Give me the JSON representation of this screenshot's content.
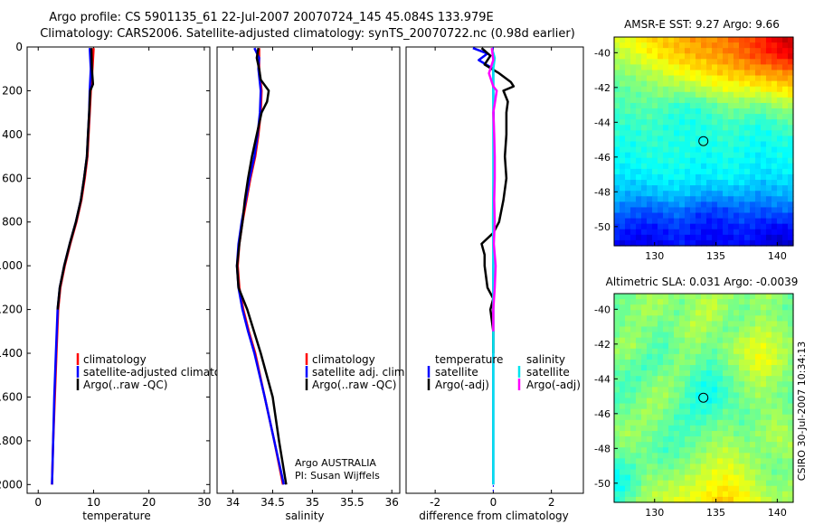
{
  "header": {
    "line1": "Argo profile: CS 5901135_61 22-Jul-2007 20070724_145 45.084S 133.979E",
    "line2": "Climatology: CARS2006. Satellite-adjusted climatology: synTS_20070722.nc (0.98d earlier)"
  },
  "side_label": "CSIRO 30-Jul-2007 10:34:13",
  "colors": {
    "climatology": "#ff0000",
    "satellite": "#0000ff",
    "argo": "#000000",
    "salinity_sat": "#00e5ee",
    "salinity_argo": "#ff00ff"
  },
  "chart_data": [
    {
      "id": "temperature",
      "type": "line",
      "title": "",
      "xlabel": "temperature",
      "ylabel": "",
      "xlim": [
        -2,
        31
      ],
      "ylim": [
        2040,
        0
      ],
      "xticks": [
        0,
        10,
        20,
        30
      ],
      "yticks": [
        0,
        200,
        400,
        600,
        800,
        1000,
        1200,
        1400,
        1600,
        1800,
        2000
      ],
      "grid": false,
      "legend": {
        "position": "lower-right",
        "entries": [
          "climatology",
          "satellite-adjusted climatology",
          "Argo(..raw -QC)"
        ]
      },
      "series": [
        {
          "name": "climatology",
          "color": "#ff0000",
          "depth": [
            5,
            100,
            200,
            300,
            400,
            500,
            600,
            700,
            800,
            900,
            1000,
            1100,
            1200,
            1400,
            1600,
            1800,
            2000
          ],
          "values": [
            10.0,
            9.8,
            9.5,
            9.3,
            9.1,
            8.9,
            8.4,
            7.8,
            6.9,
            5.8,
            4.8,
            4.0,
            3.6,
            3.3,
            3.0,
            2.7,
            2.5
          ]
        },
        {
          "name": "satellite-adjusted climatology",
          "color": "#0000ff",
          "depth": [
            5,
            100,
            200,
            300,
            400,
            500,
            600,
            700,
            800,
            900,
            1000,
            1100,
            1200,
            1400,
            1600,
            1800,
            2000
          ],
          "values": [
            9.3,
            9.5,
            9.3,
            9.2,
            9.0,
            8.8,
            8.3,
            7.7,
            6.8,
            5.7,
            4.7,
            3.9,
            3.5,
            3.2,
            2.9,
            2.7,
            2.5
          ]
        },
        {
          "name": "Argo(..raw -QC)",
          "color": "#000000",
          "depth": [
            5,
            100,
            170,
            200,
            300,
            400,
            500,
            600,
            700,
            800,
            900,
            1000,
            1100,
            1200
          ],
          "values": [
            9.6,
            9.7,
            9.9,
            9.4,
            9.2,
            9.0,
            8.8,
            8.3,
            7.7,
            6.8,
            5.7,
            4.7,
            3.9,
            3.5
          ]
        }
      ]
    },
    {
      "id": "salinity",
      "type": "line",
      "title": "",
      "xlabel": "salinity",
      "ylabel": "",
      "xlim": [
        33.8,
        36.1
      ],
      "ylim": [
        2040,
        0
      ],
      "xticks": [
        34,
        34.5,
        35,
        35.5,
        36
      ],
      "yticks": [],
      "grid": false,
      "legend": {
        "position": "lower-right",
        "entries": [
          "climatology",
          "satellite adj. clim.",
          "Argo(..raw -QC)"
        ]
      },
      "annotations": [
        "Argo AUSTRALIA",
        "PI: Susan Wijffels"
      ],
      "series": [
        {
          "name": "climatology",
          "color": "#ff0000",
          "depth": [
            5,
            100,
            200,
            300,
            400,
            500,
            600,
            700,
            800,
            900,
            1000,
            1100,
            1200,
            1300,
            1400,
            1600,
            1800,
            2000
          ],
          "values": [
            34.33,
            34.33,
            34.36,
            34.35,
            34.32,
            34.28,
            34.22,
            34.17,
            34.12,
            34.08,
            34.06,
            34.08,
            34.13,
            34.2,
            34.28,
            34.4,
            34.52,
            34.63
          ]
        },
        {
          "name": "satellite adj. clim.",
          "color": "#0000ff",
          "depth": [
            5,
            50,
            100,
            200,
            300,
            400,
            500,
            600,
            700,
            800,
            900,
            1000,
            1100,
            1200,
            1300,
            1400,
            1600,
            1800,
            2000
          ],
          "values": [
            34.27,
            34.33,
            34.32,
            34.35,
            34.34,
            34.31,
            34.27,
            34.21,
            34.16,
            34.11,
            34.07,
            34.05,
            34.07,
            34.12,
            34.19,
            34.27,
            34.4,
            34.52,
            34.64
          ]
        },
        {
          "name": "Argo(..raw -QC)",
          "color": "#000000",
          "depth": [
            5,
            50,
            100,
            150,
            200,
            250,
            300,
            400,
            500,
            600,
            700,
            800,
            900,
            1000,
            1100,
            1200,
            1400,
            1600,
            1800,
            2000
          ],
          "values": [
            34.32,
            34.3,
            34.33,
            34.35,
            34.45,
            34.43,
            34.36,
            34.3,
            34.24,
            34.19,
            34.15,
            34.12,
            34.08,
            34.05,
            34.07,
            34.18,
            34.35,
            34.5,
            34.58,
            34.67
          ]
        }
      ]
    },
    {
      "id": "difference",
      "type": "line",
      "title": "",
      "xlabel": "difference from climatology",
      "ylabel": "",
      "xlim": [
        -3,
        3.1
      ],
      "ylim": [
        2040,
        0
      ],
      "xticks": [
        -2,
        0,
        2
      ],
      "yticks": [],
      "grid": false,
      "legend": {
        "position": "lower-center",
        "temperature_header": "temperature",
        "salinity_header": "salinity",
        "entries": [
          "satellite",
          "Argo(-adj)",
          "satellite",
          "Argo(-adj)"
        ]
      },
      "series": [
        {
          "name": "temperature satellite",
          "color": "#0000ff",
          "depth": [
            5,
            30,
            60,
            100,
            200,
            400,
            600,
            800,
            1000,
            1200,
            1400,
            1600,
            1800,
            2000
          ],
          "values": [
            -0.7,
            -0.2,
            -0.5,
            0.0,
            0.0,
            0.02,
            0.02,
            0.02,
            0.0,
            0.0,
            0.0,
            0.0,
            0.0,
            0.0
          ]
        },
        {
          "name": "temperature Argo(-adj)",
          "color": "#000000",
          "depth": [
            5,
            40,
            80,
            120,
            160,
            180,
            200,
            250,
            300,
            400,
            500,
            600,
            700,
            800,
            850,
            900,
            950,
            1000,
            1100,
            1150,
            1200,
            1300,
            1400
          ],
          "values": [
            -0.4,
            -0.1,
            -0.3,
            0.2,
            0.6,
            0.7,
            0.35,
            0.5,
            0.45,
            0.45,
            0.4,
            0.45,
            0.35,
            0.2,
            0.0,
            -0.4,
            -0.3,
            -0.3,
            -0.2,
            0.0,
            -0.1,
            0.0,
            0.0
          ]
        },
        {
          "name": "salinity satellite",
          "color": "#00e5ee",
          "depth": [
            5,
            50,
            100,
            200,
            300,
            400,
            600,
            800,
            1000,
            1200,
            1400,
            1600,
            1800,
            2000
          ],
          "values": [
            -0.05,
            0.05,
            0.0,
            0.0,
            0.0,
            0.0,
            0.0,
            -0.01,
            0.0,
            0.0,
            0.0,
            0.0,
            0.0,
            0.0
          ]
        },
        {
          "name": "salinity Argo(-adj)",
          "color": "#ff00ff",
          "depth": [
            5,
            60,
            120,
            180,
            200,
            260,
            300,
            400,
            500,
            600,
            700,
            800,
            900,
            1000,
            1100,
            1200,
            1300
          ],
          "values": [
            -0.05,
            0.0,
            -0.15,
            0.0,
            0.12,
            0.05,
            0.0,
            0.03,
            0.05,
            0.05,
            0.03,
            0.05,
            0.02,
            0.08,
            0.05,
            0.0,
            0.0
          ]
        }
      ]
    },
    {
      "id": "sst_map",
      "type": "heatmap",
      "title": "AMSR-E SST: 9.27 Argo: 9.66",
      "xlabel": "",
      "ylabel": "",
      "xlim": [
        126.7,
        141.3
      ],
      "ylim": [
        -51.1,
        -39.1
      ],
      "xticks": [
        130,
        135,
        140
      ],
      "yticks": [
        -40,
        -42,
        -44,
        -46,
        -48,
        -50
      ],
      "marker": {
        "lon": 133.979,
        "lat": -45.084
      },
      "field": [
        [
          0.6,
          0.62,
          0.65,
          0.68,
          0.7,
          0.72,
          0.74,
          0.76,
          0.8,
          0.84,
          0.9,
          0.95
        ],
        [
          0.55,
          0.58,
          0.62,
          0.65,
          0.68,
          0.7,
          0.72,
          0.74,
          0.78,
          0.82,
          0.86,
          0.9
        ],
        [
          0.5,
          0.52,
          0.55,
          0.58,
          0.62,
          0.64,
          0.66,
          0.68,
          0.7,
          0.72,
          0.74,
          0.76
        ],
        [
          0.46,
          0.48,
          0.5,
          0.52,
          0.52,
          0.54,
          0.58,
          0.6,
          0.6,
          0.62,
          0.64,
          0.66
        ],
        [
          0.44,
          0.46,
          0.46,
          0.45,
          0.42,
          0.42,
          0.46,
          0.5,
          0.5,
          0.48,
          0.52,
          0.54
        ],
        [
          0.42,
          0.42,
          0.44,
          0.42,
          0.4,
          0.4,
          0.42,
          0.44,
          0.42,
          0.4,
          0.44,
          0.46
        ],
        [
          0.4,
          0.4,
          0.42,
          0.42,
          0.4,
          0.4,
          0.4,
          0.42,
          0.4,
          0.38,
          0.4,
          0.4
        ],
        [
          0.38,
          0.38,
          0.4,
          0.4,
          0.4,
          0.38,
          0.38,
          0.4,
          0.38,
          0.36,
          0.38,
          0.38
        ],
        [
          0.35,
          0.35,
          0.36,
          0.38,
          0.38,
          0.36,
          0.36,
          0.38,
          0.36,
          0.34,
          0.35,
          0.36
        ],
        [
          0.32,
          0.3,
          0.3,
          0.32,
          0.32,
          0.3,
          0.28,
          0.3,
          0.3,
          0.28,
          0.3,
          0.3
        ],
        [
          0.25,
          0.22,
          0.2,
          0.22,
          0.24,
          0.2,
          0.18,
          0.2,
          0.22,
          0.2,
          0.22,
          0.22
        ],
        [
          0.18,
          0.15,
          0.14,
          0.16,
          0.18,
          0.15,
          0.13,
          0.15,
          0.16,
          0.14,
          0.12,
          0.14
        ],
        [
          0.12,
          0.1,
          0.1,
          0.12,
          0.14,
          0.12,
          0.1,
          0.12,
          0.14,
          0.1,
          0.06,
          0.08
        ]
      ]
    },
    {
      "id": "sla_map",
      "type": "heatmap",
      "title": "Altimetric SLA: 0.031 Argo: -0.0039",
      "xlabel": "",
      "ylabel": "",
      "xlim": [
        126.7,
        141.3
      ],
      "ylim": [
        -51.1,
        -39.1
      ],
      "xticks": [
        130,
        135,
        140
      ],
      "yticks": [
        -40,
        -42,
        -44,
        -46,
        -48,
        -50
      ],
      "marker": {
        "lon": 133.979,
        "lat": -45.084
      },
      "field": [
        [
          0.5,
          0.48,
          0.52,
          0.55,
          0.5,
          0.52,
          0.56,
          0.52,
          0.5,
          0.54,
          0.52,
          0.48
        ],
        [
          0.46,
          0.5,
          0.55,
          0.52,
          0.48,
          0.54,
          0.58,
          0.5,
          0.48,
          0.52,
          0.5,
          0.46
        ],
        [
          0.48,
          0.52,
          0.5,
          0.46,
          0.52,
          0.56,
          0.52,
          0.48,
          0.52,
          0.56,
          0.54,
          0.5
        ],
        [
          0.52,
          0.54,
          0.48,
          0.44,
          0.5,
          0.52,
          0.48,
          0.52,
          0.58,
          0.6,
          0.56,
          0.52
        ],
        [
          0.5,
          0.48,
          0.44,
          0.46,
          0.52,
          0.48,
          0.44,
          0.5,
          0.56,
          0.62,
          0.58,
          0.5
        ],
        [
          0.46,
          0.44,
          0.48,
          0.52,
          0.5,
          0.42,
          0.4,
          0.46,
          0.52,
          0.56,
          0.52,
          0.48
        ],
        [
          0.44,
          0.46,
          0.52,
          0.54,
          0.48,
          0.4,
          0.38,
          0.44,
          0.5,
          0.52,
          0.5,
          0.46
        ],
        [
          0.48,
          0.5,
          0.54,
          0.5,
          0.44,
          0.42,
          0.44,
          0.48,
          0.46,
          0.5,
          0.54,
          0.48
        ],
        [
          0.52,
          0.54,
          0.5,
          0.46,
          0.44,
          0.46,
          0.5,
          0.52,
          0.48,
          0.52,
          0.56,
          0.52
        ],
        [
          0.48,
          0.5,
          0.48,
          0.44,
          0.46,
          0.5,
          0.54,
          0.56,
          0.52,
          0.5,
          0.52,
          0.54
        ],
        [
          0.4,
          0.44,
          0.5,
          0.48,
          0.5,
          0.54,
          0.58,
          0.6,
          0.56,
          0.52,
          0.48,
          0.5
        ],
        [
          0.36,
          0.42,
          0.52,
          0.54,
          0.56,
          0.58,
          0.62,
          0.64,
          0.6,
          0.54,
          0.5,
          0.52
        ],
        [
          0.42,
          0.48,
          0.55,
          0.58,
          0.6,
          0.62,
          0.66,
          0.68,
          0.64,
          0.58,
          0.54,
          0.56
        ]
      ]
    }
  ]
}
